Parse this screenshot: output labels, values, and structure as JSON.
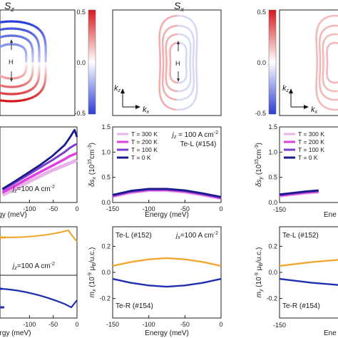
{
  "colorbar": {
    "ticks": [
      "0.5",
      "0.0",
      "-0.5"
    ],
    "colors": {
      "top": "#d7191c",
      "mid": "#ffffff",
      "bottom": "#2b3ed6"
    }
  },
  "row1": [
    {
      "title": "S",
      "title_sub": "z",
      "h_label": "H",
      "kz_label": "k",
      "kz_sub": "z",
      "kx_label": "k",
      "kx_sub": "x"
    },
    {
      "title": "S",
      "title_sub": "x",
      "h_label": "H",
      "kz_label": "k",
      "kz_sub": "z",
      "kx_label": "k",
      "kx_sub": "x"
    },
    {
      "title": "",
      "title_sub": "",
      "h_label": "",
      "kz_label": "k",
      "kz_sub": "z",
      "kx_label": "k",
      "kx_sub": "x"
    }
  ],
  "row2": {
    "xticks": [
      "-150",
      "-100",
      "-50",
      "0"
    ],
    "yticks": [
      "0.0",
      "0.5",
      "1.0",
      "1.5"
    ],
    "xlabel": "Energy (meV)",
    "ylabel_mid": "δs",
    "ylabel_mid_sub": "x",
    "ylabel_right": "δs",
    "ylabel_right_sub": "y",
    "ylabel_unit_pre": " (10",
    "ylabel_unit_exp": "15",
    "ylabel_unit_post": "cm",
    "ylabel_unit_exp2": "-3",
    "ylabel_unit_close": ")",
    "legend": [
      {
        "label": "T = 300 K",
        "color": "#e8b4e8"
      },
      {
        "label": "T = 200 K",
        "color": "#e040e0"
      },
      {
        "label": "T = 100 K",
        "color": "#7b3fd0"
      },
      {
        "label": "T = 0 K",
        "color": "#1a1a8c"
      }
    ],
    "left_annotation": {
      "pre": "j",
      "sub": "z",
      "post": "=100 A cm",
      "sup": "-2"
    },
    "mid_annotation": {
      "pre": "j",
      "sub": "z",
      "post": " = 100 A cm",
      "sup": "-2",
      "line2": "Te-L (#154)"
    }
  },
  "row3": {
    "xticks": [
      "-150",
      "-100",
      "-50",
      "0"
    ],
    "yticks": [
      "0.0",
      "0.2",
      "-0.2"
    ],
    "xlabel": "Energy (meV)",
    "ylabel_mid": "m",
    "ylabel_mid_sub": "x",
    "ylabel_right": "m",
    "ylabel_right_sub": "y",
    "ylabel_unit_pre": " (10",
    "ylabel_unit_exp": "-9",
    "ylabel_unit_mu": " μ",
    "ylabel_unit_mu_sub": "B",
    "ylabel_unit_post": "/u.c.)",
    "left_annotation": {
      "pre": "j",
      "sub": "z",
      "post": "=100 A cm",
      "sup": "-2"
    },
    "mid_annotation": {
      "pre": "j",
      "sub": "x",
      "post": "=100 A cm",
      "sup": "-2"
    },
    "te_l": "Te-L (#152)",
    "te_r": "Te-R (#154)",
    "colors": {
      "te_l": "#f0a830",
      "te_r": "#1f2fb0"
    }
  },
  "chart_data": [
    {
      "type": "line",
      "panel": "row2-left",
      "x": [
        -150,
        -125,
        -100,
        -75,
        -50,
        -25,
        -15,
        -5,
        0
      ],
      "ylim": [
        0,
        1.5
      ],
      "xlim": [
        -150,
        0
      ],
      "series": [
        {
          "name": "T = 300 K",
          "values": [
            0.15,
            0.27,
            0.4,
            0.52,
            0.64,
            0.74,
            0.78,
            0.82,
            0.84
          ]
        },
        {
          "name": "T = 200 K",
          "values": [
            0.2,
            0.33,
            0.47,
            0.6,
            0.73,
            0.86,
            0.92,
            0.96,
            0.98
          ]
        },
        {
          "name": "T = 100 K",
          "values": [
            0.25,
            0.39,
            0.54,
            0.69,
            0.84,
            1.0,
            1.08,
            1.14,
            1.16
          ]
        },
        {
          "name": "T = 0 K",
          "values": [
            0.27,
            0.42,
            0.58,
            0.74,
            0.92,
            1.14,
            1.28,
            1.44,
            1.3
          ]
        }
      ]
    },
    {
      "type": "line",
      "panel": "row2-middle",
      "x": [
        -150,
        -125,
        -100,
        -75,
        -50,
        -25,
        0
      ],
      "xlim": [
        -150,
        0
      ],
      "ylim": [
        0,
        1.5
      ],
      "series": [
        {
          "name": "T = 300 K",
          "values": [
            0.12,
            0.2,
            0.24,
            0.24,
            0.21,
            0.15,
            0.08
          ]
        },
        {
          "name": "T = 200 K",
          "values": [
            0.13,
            0.21,
            0.25,
            0.25,
            0.22,
            0.16,
            0.09
          ]
        },
        {
          "name": "T = 100 K",
          "values": [
            0.14,
            0.22,
            0.26,
            0.26,
            0.23,
            0.17,
            0.1
          ]
        },
        {
          "name": "T = 0 K",
          "values": [
            0.15,
            0.23,
            0.27,
            0.27,
            0.24,
            0.18,
            0.11
          ]
        }
      ]
    },
    {
      "type": "line",
      "panel": "row2-right",
      "x": [
        -150,
        -140,
        -130,
        -120
      ],
      "xlim": [
        -150,
        0
      ],
      "ylim": [
        0,
        1.5
      ],
      "series": [
        {
          "name": "T = 300 K",
          "values": [
            0.13,
            0.16,
            0.19,
            0.21
          ]
        },
        {
          "name": "T = 200 K",
          "values": [
            0.14,
            0.17,
            0.2,
            0.22
          ]
        },
        {
          "name": "T = 100 K",
          "values": [
            0.15,
            0.18,
            0.21,
            0.23
          ]
        },
        {
          "name": "T = 0 K",
          "values": [
            0.16,
            0.19,
            0.22,
            0.24
          ]
        }
      ]
    },
    {
      "type": "line",
      "panel": "row3-middle",
      "x": [
        -150,
        -125,
        -100,
        -75,
        -50,
        -25,
        0
      ],
      "xlim": [
        -150,
        0
      ],
      "ylim": [
        -0.35,
        0.35
      ],
      "series": [
        {
          "name": "Te-L (#152)",
          "values": [
            0.05,
            0.08,
            0.1,
            0.11,
            0.1,
            0.08,
            0.05
          ]
        },
        {
          "name": "Te-R (#154)",
          "values": [
            -0.05,
            -0.08,
            -0.1,
            -0.11,
            -0.1,
            -0.08,
            -0.05
          ]
        }
      ]
    }
  ]
}
